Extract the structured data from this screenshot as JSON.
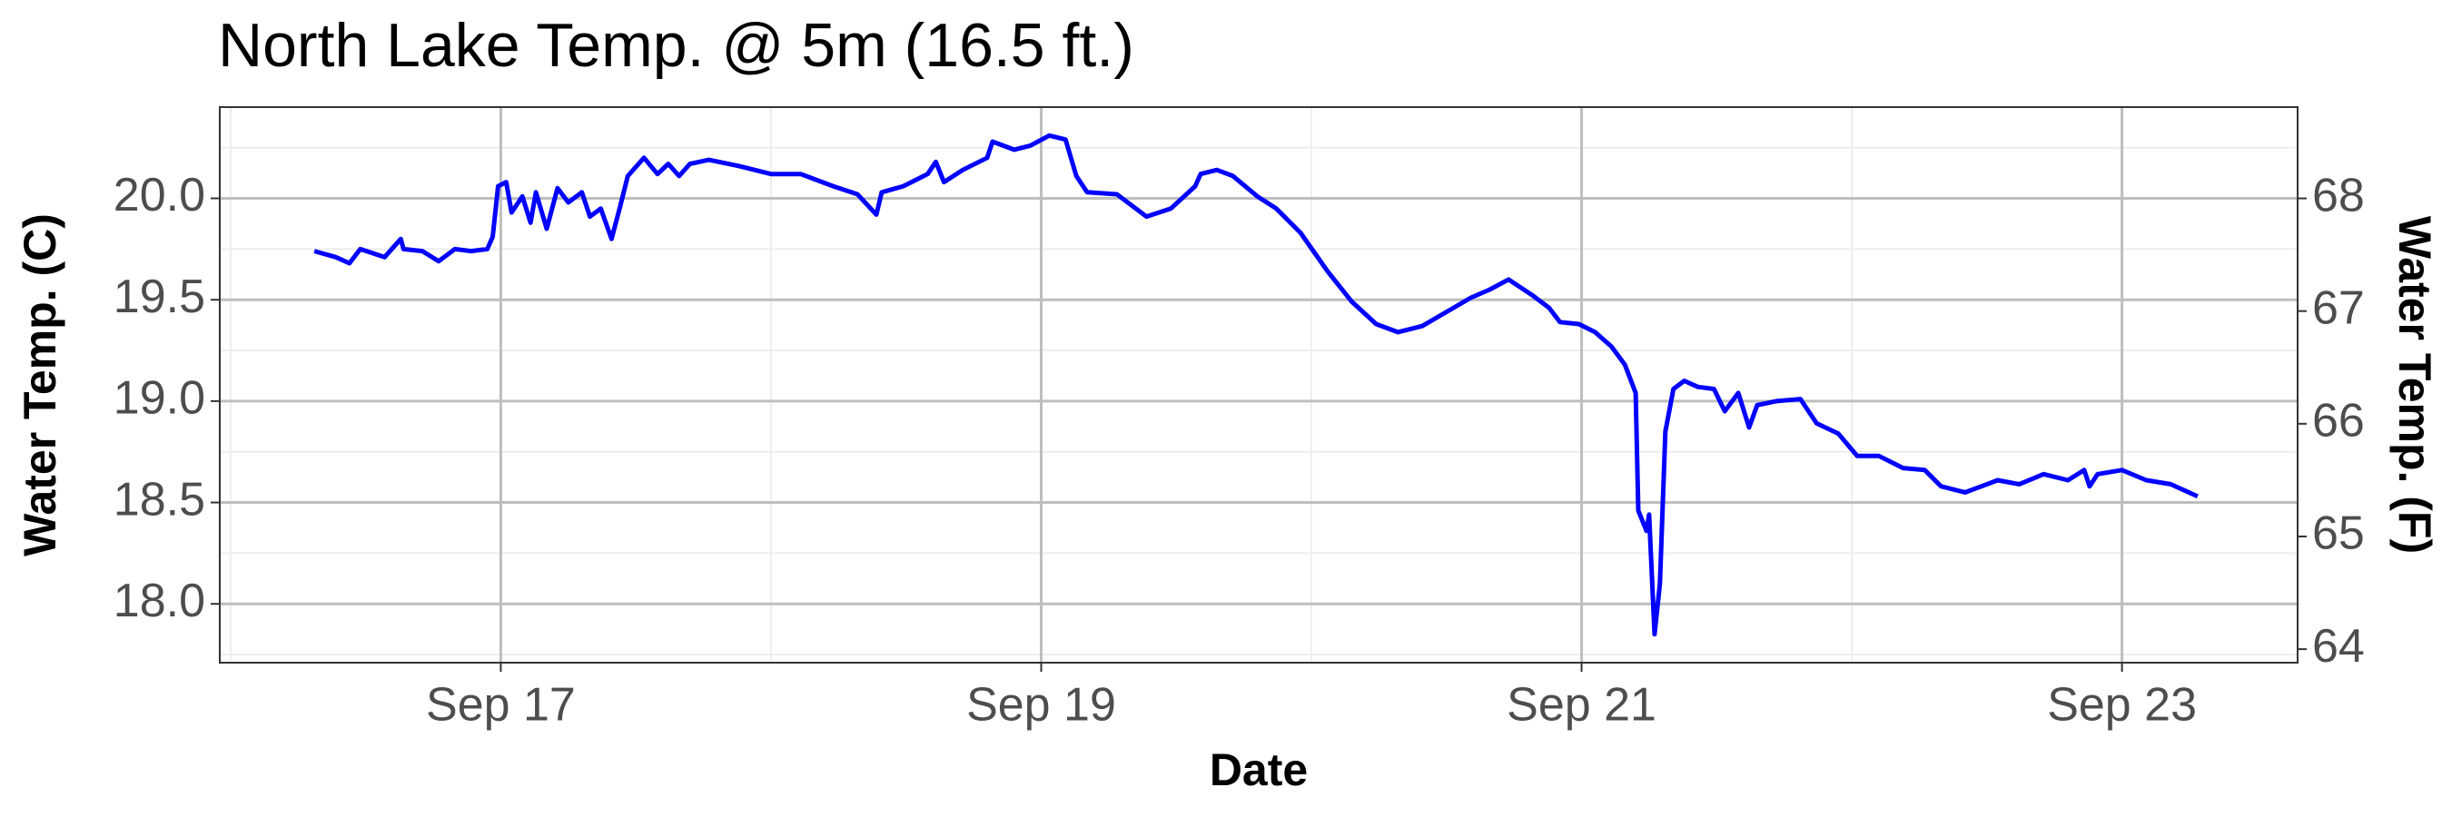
{
  "chart_data": {
    "type": "line",
    "title": "North Lake Temp. @ 5m (16.5 ft.)",
    "x_label": "Date",
    "y_label": "Water Temp. (C)",
    "y2_label": "Water Temp. (F)",
    "color": "#0000ff",
    "grid": true,
    "xlim": [
      15.96,
      23.65
    ],
    "xticks": [
      {
        "value": 17,
        "label": "Sep 17"
      },
      {
        "value": 19,
        "label": "Sep 19"
      },
      {
        "value": 21,
        "label": "Sep 21"
      },
      {
        "value": 23,
        "label": "Sep 23"
      }
    ],
    "ylim": [
      17.71,
      20.45
    ],
    "yticks": [
      {
        "value": 18,
        "label": "18.0"
      },
      18.5,
      {
        "value": 19,
        "label": "19.0"
      },
      19.5,
      {
        "value": 20,
        "label": "20.0"
      }
    ],
    "y2lim": [
      63.88,
      68.81
    ],
    "y2ticks": [
      64,
      65,
      66,
      67,
      68
    ],
    "x": [
      16.31,
      16.39,
      16.44,
      16.48,
      16.57,
      16.63,
      16.64,
      16.71,
      16.77,
      16.83,
      16.89,
      16.95,
      16.97,
      16.99,
      17.02,
      17.04,
      17.08,
      17.11,
      17.13,
      17.17,
      17.21,
      17.25,
      17.3,
      17.33,
      17.37,
      17.41,
      17.44,
      17.47,
      17.53,
      17.58,
      17.62,
      17.66,
      17.7,
      17.77,
      17.88,
      18.0,
      18.11,
      18.23,
      18.32,
      18.39,
      18.41,
      18.49,
      18.58,
      18.61,
      18.64,
      18.71,
      18.8,
      18.82,
      18.9,
      18.96,
      19.03,
      19.09,
      19.13,
      19.17,
      19.28,
      19.39,
      19.48,
      19.57,
      19.59,
      19.65,
      19.71,
      19.8,
      19.87,
      19.96,
      20.06,
      20.15,
      20.24,
      20.32,
      20.41,
      20.5,
      20.59,
      20.66,
      20.73,
      20.82,
      20.88,
      20.92,
      20.99,
      21.05,
      21.11,
      21.16,
      21.2,
      21.21,
      21.24,
      21.25,
      21.27,
      21.29,
      21.31,
      21.34,
      21.38,
      21.43,
      21.49,
      21.53,
      21.58,
      21.62,
      21.65,
      21.72,
      21.81,
      21.87,
      21.95,
      22.02,
      22.1,
      22.19,
      22.27,
      22.33,
      22.42,
      22.48,
      22.54,
      22.62,
      22.71,
      22.8,
      22.86,
      22.88,
      22.91,
      23.0,
      23.09,
      23.18,
      23.28
    ],
    "values": [
      19.74,
      19.71,
      19.68,
      19.75,
      19.71,
      19.8,
      19.75,
      19.74,
      19.69,
      19.75,
      19.74,
      19.75,
      19.81,
      20.06,
      20.08,
      19.93,
      20.01,
      19.88,
      20.03,
      19.85,
      20.05,
      19.98,
      20.03,
      19.91,
      19.95,
      19.8,
      19.95,
      20.11,
      20.2,
      20.12,
      20.17,
      20.11,
      20.17,
      20.19,
      20.16,
      20.12,
      20.12,
      20.06,
      20.02,
      19.92,
      20.03,
      20.06,
      20.12,
      20.18,
      20.08,
      20.14,
      20.2,
      20.28,
      20.24,
      20.26,
      20.31,
      20.29,
      20.11,
      20.03,
      20.02,
      19.91,
      19.95,
      20.06,
      20.12,
      20.14,
      20.11,
      20.01,
      19.95,
      19.83,
      19.64,
      19.49,
      19.38,
      19.34,
      19.37,
      19.44,
      19.51,
      19.55,
      19.6,
      19.52,
      19.46,
      19.39,
      19.38,
      19.34,
      19.27,
      19.18,
      19.04,
      18.46,
      18.36,
      18.44,
      17.85,
      18.1,
      18.85,
      19.06,
      19.1,
      19.07,
      19.06,
      18.95,
      19.04,
      18.87,
      18.98,
      19.0,
      19.01,
      18.89,
      18.84,
      18.73,
      18.73,
      18.67,
      18.66,
      18.58,
      18.55,
      18.58,
      18.61,
      18.59,
      18.64,
      18.61,
      18.66,
      18.58,
      18.64,
      18.66,
      18.61,
      18.59,
      18.53
    ]
  }
}
